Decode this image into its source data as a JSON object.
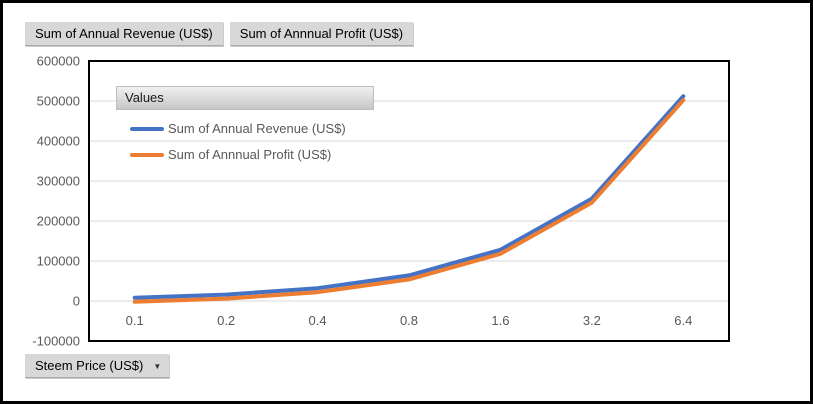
{
  "field_buttons": {
    "revenue_label": "Sum of Annual Revenue (US$)",
    "profit_label": "Sum of Annnual Profit (US$)"
  },
  "axis_filter": {
    "label": "Steem Price (US$)",
    "dropdown_icon": "▼"
  },
  "legend": {
    "title": "Values"
  },
  "colors": {
    "series_revenue": "#4472C4",
    "series_profit": "#ED7D31",
    "gridline": "#d9d9d9",
    "axis_text": "#595959",
    "plot_border": "#000000"
  },
  "chart_data": {
    "type": "line",
    "title": "",
    "xlabel": "Steem Price (US$)",
    "ylabel": "",
    "categories": [
      "0.1",
      "0.2",
      "0.4",
      "0.8",
      "1.6",
      "3.2",
      "6.4"
    ],
    "series": [
      {
        "name": "Sum of Annual Revenue (US$)",
        "color": "#4472C4",
        "values": [
          8000,
          16000,
          32000,
          64000,
          128000,
          256000,
          512000
        ]
      },
      {
        "name": "Sum of Annnual Profit (US$)",
        "color": "#ED7D31",
        "values": [
          -2000,
          6000,
          22000,
          54000,
          118000,
          246000,
          502000
        ]
      }
    ],
    "ylim": [
      -100000,
      600000
    ],
    "yticks": [
      600000,
      500000,
      400000,
      300000,
      200000,
      100000,
      0,
      -100000
    ],
    "ytick_step": 100000,
    "grid": true,
    "legend_position": "top-left-inside"
  }
}
